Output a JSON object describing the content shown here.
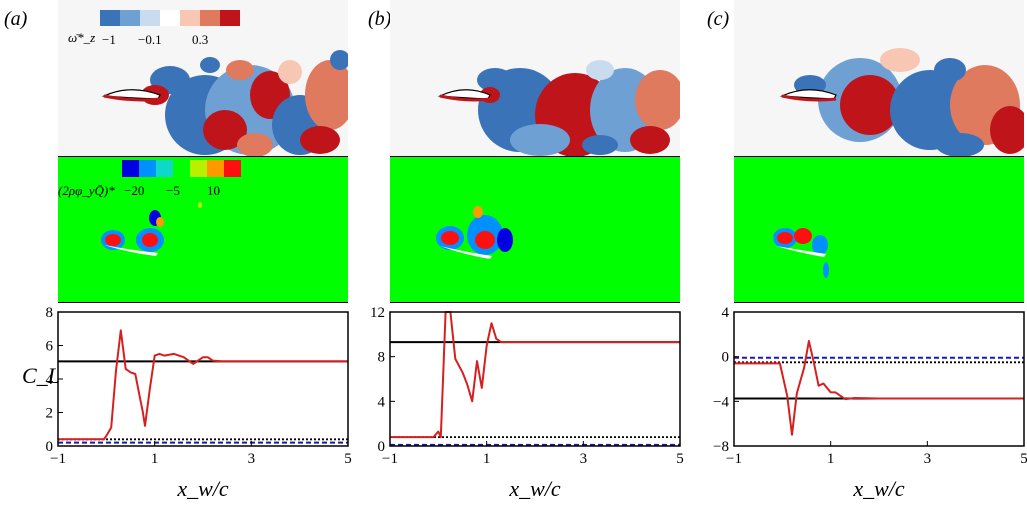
{
  "panel_labels": [
    "(a)",
    "(b)",
    "(c)"
  ],
  "vorticity_colorbar": {
    "label": "ω̄*_z",
    "ticks": [
      "−1",
      "−0.1",
      "0.3"
    ],
    "colors": [
      "#3a73b8",
      "#6fa0d4",
      "#c9dcef",
      "#ffffff",
      "#f7c7b3",
      "#e07a5f",
      "#c0141b"
    ]
  },
  "source_colorbar": {
    "label": "(2ρφ_yQ̄)*",
    "ticks": [
      "−20",
      "−5",
      "10"
    ],
    "colors": [
      "#0000e0",
      "#0090ff",
      "#10d8c8",
      "#00ff00",
      "#b8f000",
      "#ff9900",
      "#ff1010"
    ]
  },
  "chart_data": [
    {
      "type": "line",
      "panel": "(a)",
      "xlabel": "x_w/c",
      "ylabel": "C_L",
      "xlim": [
        -1,
        5
      ],
      "ylim": [
        0,
        8
      ],
      "xticks": [
        "−1",
        "1",
        "3",
        "5"
      ],
      "yticks": [
        "0",
        "2",
        "4",
        "6",
        "8"
      ],
      "series": [
        {
          "style": "solid",
          "color": "#d62020",
          "x": [
            -1,
            -0.05,
            0.0,
            0.1,
            0.2,
            0.3,
            0.4,
            0.5,
            0.6,
            0.7,
            0.75,
            0.8,
            0.9,
            1.0,
            1.1,
            1.2,
            1.4,
            1.6,
            1.8,
            2.0,
            2.1,
            2.2,
            2.4,
            2.6,
            3.0,
            5.0
          ],
          "y": [
            0.4,
            0.4,
            0.6,
            1.1,
            4.5,
            6.9,
            4.6,
            4.4,
            4.3,
            2.8,
            2.1,
            1.2,
            3.4,
            5.4,
            5.5,
            5.4,
            5.5,
            5.3,
            4.9,
            5.3,
            5.3,
            5.1,
            5.05,
            5.05,
            5.05,
            5.05
          ]
        },
        {
          "style": "solid",
          "color": "#000000",
          "x": [
            -1,
            5
          ],
          "y": [
            5.05,
            5.05
          ]
        },
        {
          "style": "dashed",
          "color": "#1a1ab0",
          "x": [
            -1,
            5
          ],
          "y": [
            0.2,
            0.2
          ]
        },
        {
          "style": "dotted",
          "color": "#000000",
          "x": [
            -1,
            5
          ],
          "y": [
            0.4,
            0.4
          ]
        }
      ]
    },
    {
      "type": "line",
      "panel": "(b)",
      "xlabel": "x_w/c",
      "ylabel": "",
      "xlim": [
        -1,
        5
      ],
      "ylim": [
        0,
        12
      ],
      "xticks": [
        "−1",
        "1",
        "3",
        "5"
      ],
      "yticks": [
        "0",
        "4",
        "8",
        "12"
      ],
      "series": [
        {
          "style": "solid",
          "color": "#d62020",
          "x": [
            -1,
            -0.1,
            0.0,
            0.05,
            0.15,
            0.25,
            0.35,
            0.5,
            0.6,
            0.7,
            0.8,
            0.9,
            1.0,
            1.1,
            1.2,
            1.3,
            1.5,
            2.0,
            5.0
          ],
          "y": [
            0.8,
            0.8,
            1.3,
            0.8,
            12.0,
            12.0,
            7.8,
            6.6,
            5.5,
            4.0,
            7.6,
            5.2,
            9.0,
            11.0,
            9.6,
            9.3,
            9.3,
            9.3,
            9.3
          ]
        },
        {
          "style": "solid",
          "color": "#000000",
          "x": [
            -1,
            5
          ],
          "y": [
            9.3,
            9.3
          ]
        },
        {
          "style": "dashed",
          "color": "#1a1ab0",
          "x": [
            -1,
            5
          ],
          "y": [
            0.1,
            0.1
          ]
        },
        {
          "style": "dotted",
          "color": "#000000",
          "x": [
            -1,
            5
          ],
          "y": [
            0.8,
            0.8
          ]
        }
      ]
    },
    {
      "type": "line",
      "panel": "(c)",
      "xlabel": "x_w/c",
      "ylabel": "",
      "xlim": [
        -1,
        5
      ],
      "ylim": [
        -8,
        4
      ],
      "xticks": [
        "−1",
        "1",
        "3",
        "5"
      ],
      "yticks": [
        "−8",
        "−4",
        "0",
        "4"
      ],
      "series": [
        {
          "style": "solid",
          "color": "#d62020",
          "x": [
            -1,
            -0.05,
            0.1,
            0.2,
            0.3,
            0.45,
            0.55,
            0.65,
            0.75,
            0.85,
            1.0,
            1.1,
            1.3,
            1.5,
            2.0,
            5.0
          ],
          "y": [
            -0.6,
            -0.6,
            -3.5,
            -7.0,
            -3.3,
            -1.0,
            1.4,
            -0.5,
            -2.6,
            -2.4,
            -3.2,
            -3.2,
            -3.8,
            -3.7,
            -3.75,
            -3.75
          ]
        },
        {
          "style": "solid",
          "color": "#000000",
          "x": [
            -1,
            5
          ],
          "y": [
            -3.75,
            -3.75
          ]
        },
        {
          "style": "dashed",
          "color": "#1a1ab0",
          "x": [
            -1,
            5
          ],
          "y": [
            -0.1,
            -0.1
          ]
        },
        {
          "style": "dotted",
          "color": "#000000",
          "x": [
            -1,
            5
          ],
          "y": [
            -0.5,
            -0.5
          ]
        }
      ]
    }
  ]
}
